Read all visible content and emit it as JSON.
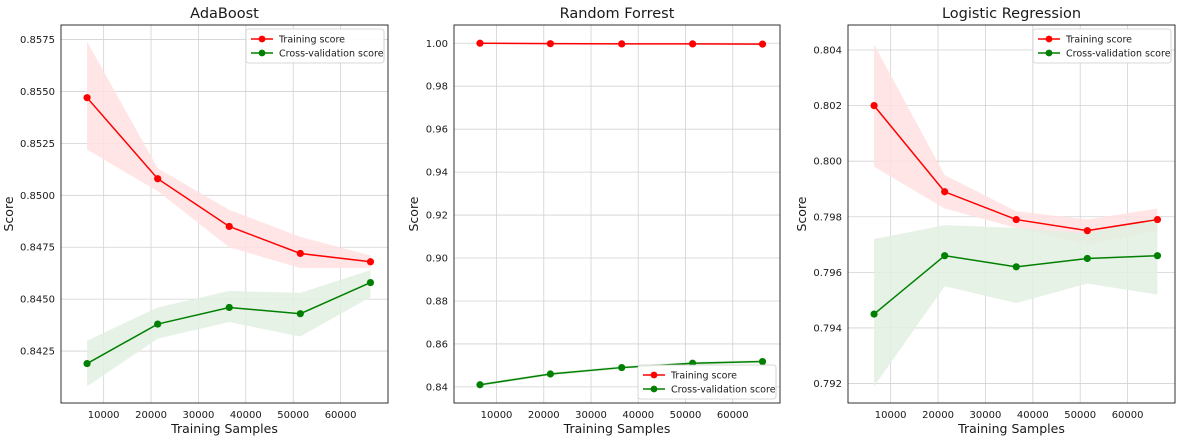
{
  "colors": {
    "training": "#ff0000",
    "training_band": "#ffe1e1",
    "cv": "#008000",
    "cv_band": "#e2f0e2",
    "grid": "#d2d2d2",
    "frame": "#1a1a1a"
  },
  "chart_data": [
    {
      "type": "line",
      "title": "AdaBoost",
      "xlabel": "Training Samples",
      "ylabel": "Score",
      "xlim": [
        1000,
        70000
      ],
      "ylim": [
        0.84,
        0.8582
      ],
      "xticks": [
        10000,
        20000,
        30000,
        40000,
        50000,
        60000
      ],
      "yticks": [
        0.8425,
        0.845,
        0.8475,
        0.85,
        0.8525,
        0.855,
        0.8575
      ],
      "ytick_labels": [
        "0.8425",
        "0.8450",
        "0.8475",
        "0.8500",
        "0.8525",
        "0.8550",
        "0.8575"
      ],
      "grid": true,
      "legend_position": "top-right",
      "x": [
        6500,
        21400,
        36500,
        51500,
        66300
      ],
      "series": [
        {
          "name": "Training score",
          "color": "training",
          "values": [
            0.8547,
            0.8508,
            0.8485,
            0.8472,
            0.8468
          ],
          "band_lower": [
            0.8522,
            0.8502,
            0.8475,
            0.8465,
            0.8465
          ],
          "band_upper": [
            0.8574,
            0.8513,
            0.8493,
            0.848,
            0.8471
          ]
        },
        {
          "name": "Cross-validation score",
          "color": "cv",
          "values": [
            0.8419,
            0.8438,
            0.8446,
            0.8443,
            0.8458
          ],
          "band_lower": [
            0.8408,
            0.8431,
            0.8439,
            0.8432,
            0.8451
          ],
          "band_upper": [
            0.843,
            0.8446,
            0.8454,
            0.8453,
            0.8464
          ]
        }
      ]
    },
    {
      "type": "line",
      "title": "Random Forrest",
      "xlabel": "Training Samples",
      "ylabel": "Score",
      "xlim": [
        1000,
        70000
      ],
      "ylim": [
        0.8325,
        1.0085
      ],
      "xticks": [
        10000,
        20000,
        30000,
        40000,
        50000,
        60000
      ],
      "yticks": [
        0.84,
        0.86,
        0.88,
        0.9,
        0.92,
        0.94,
        0.96,
        0.98,
        1.0
      ],
      "ytick_labels": [
        "0.84",
        "0.86",
        "0.88",
        "0.90",
        "0.92",
        "0.94",
        "0.96",
        "0.98",
        "1.00"
      ],
      "grid": true,
      "legend_position": "bottom-right",
      "x": [
        6500,
        21400,
        36500,
        51500,
        66300
      ],
      "series": [
        {
          "name": "Training score",
          "color": "training",
          "values": [
            1.0,
            0.9998,
            0.9997,
            0.9997,
            0.9996
          ],
          "band_lower": [
            0.9997,
            0.9995,
            0.9994,
            0.9994,
            0.9993
          ],
          "band_upper": [
            1.0002,
            1.0001,
            1.0,
            1.0,
            0.9999
          ]
        },
        {
          "name": "Cross-validation score",
          "color": "cv",
          "values": [
            0.841,
            0.846,
            0.849,
            0.851,
            0.8518
          ],
          "band_lower": [
            0.8403,
            0.8453,
            0.8483,
            0.8503,
            0.8511
          ],
          "band_upper": [
            0.8417,
            0.8467,
            0.8497,
            0.8517,
            0.8525
          ]
        }
      ]
    },
    {
      "type": "line",
      "title": "Logistic Regression",
      "xlabel": "Training Samples",
      "ylabel": "Score",
      "xlim": [
        1000,
        70000
      ],
      "ylim": [
        0.7913,
        0.8049
      ],
      "xticks": [
        10000,
        20000,
        30000,
        40000,
        50000,
        60000
      ],
      "yticks": [
        0.792,
        0.794,
        0.796,
        0.798,
        0.8,
        0.802,
        0.804
      ],
      "ytick_labels": [
        "0.792",
        "0.794",
        "0.796",
        "0.798",
        "0.800",
        "0.802",
        "0.804"
      ],
      "grid": true,
      "legend_position": "top-right",
      "x": [
        6500,
        21400,
        36500,
        51500,
        66300
      ],
      "series": [
        {
          "name": "Training score",
          "color": "training",
          "values": [
            0.802,
            0.7989,
            0.7979,
            0.7975,
            0.7979
          ],
          "band_lower": [
            0.7998,
            0.7983,
            0.7976,
            0.797,
            0.7975
          ],
          "band_upper": [
            0.8042,
            0.7995,
            0.7982,
            0.7979,
            0.7983
          ]
        },
        {
          "name": "Cross-validation score",
          "color": "cv",
          "values": [
            0.7945,
            0.7966,
            0.7962,
            0.7965,
            0.7966
          ],
          "band_lower": [
            0.7919,
            0.7955,
            0.7949,
            0.7956,
            0.7952
          ],
          "band_upper": [
            0.7972,
            0.7977,
            0.7976,
            0.7974,
            0.798
          ]
        }
      ]
    }
  ]
}
